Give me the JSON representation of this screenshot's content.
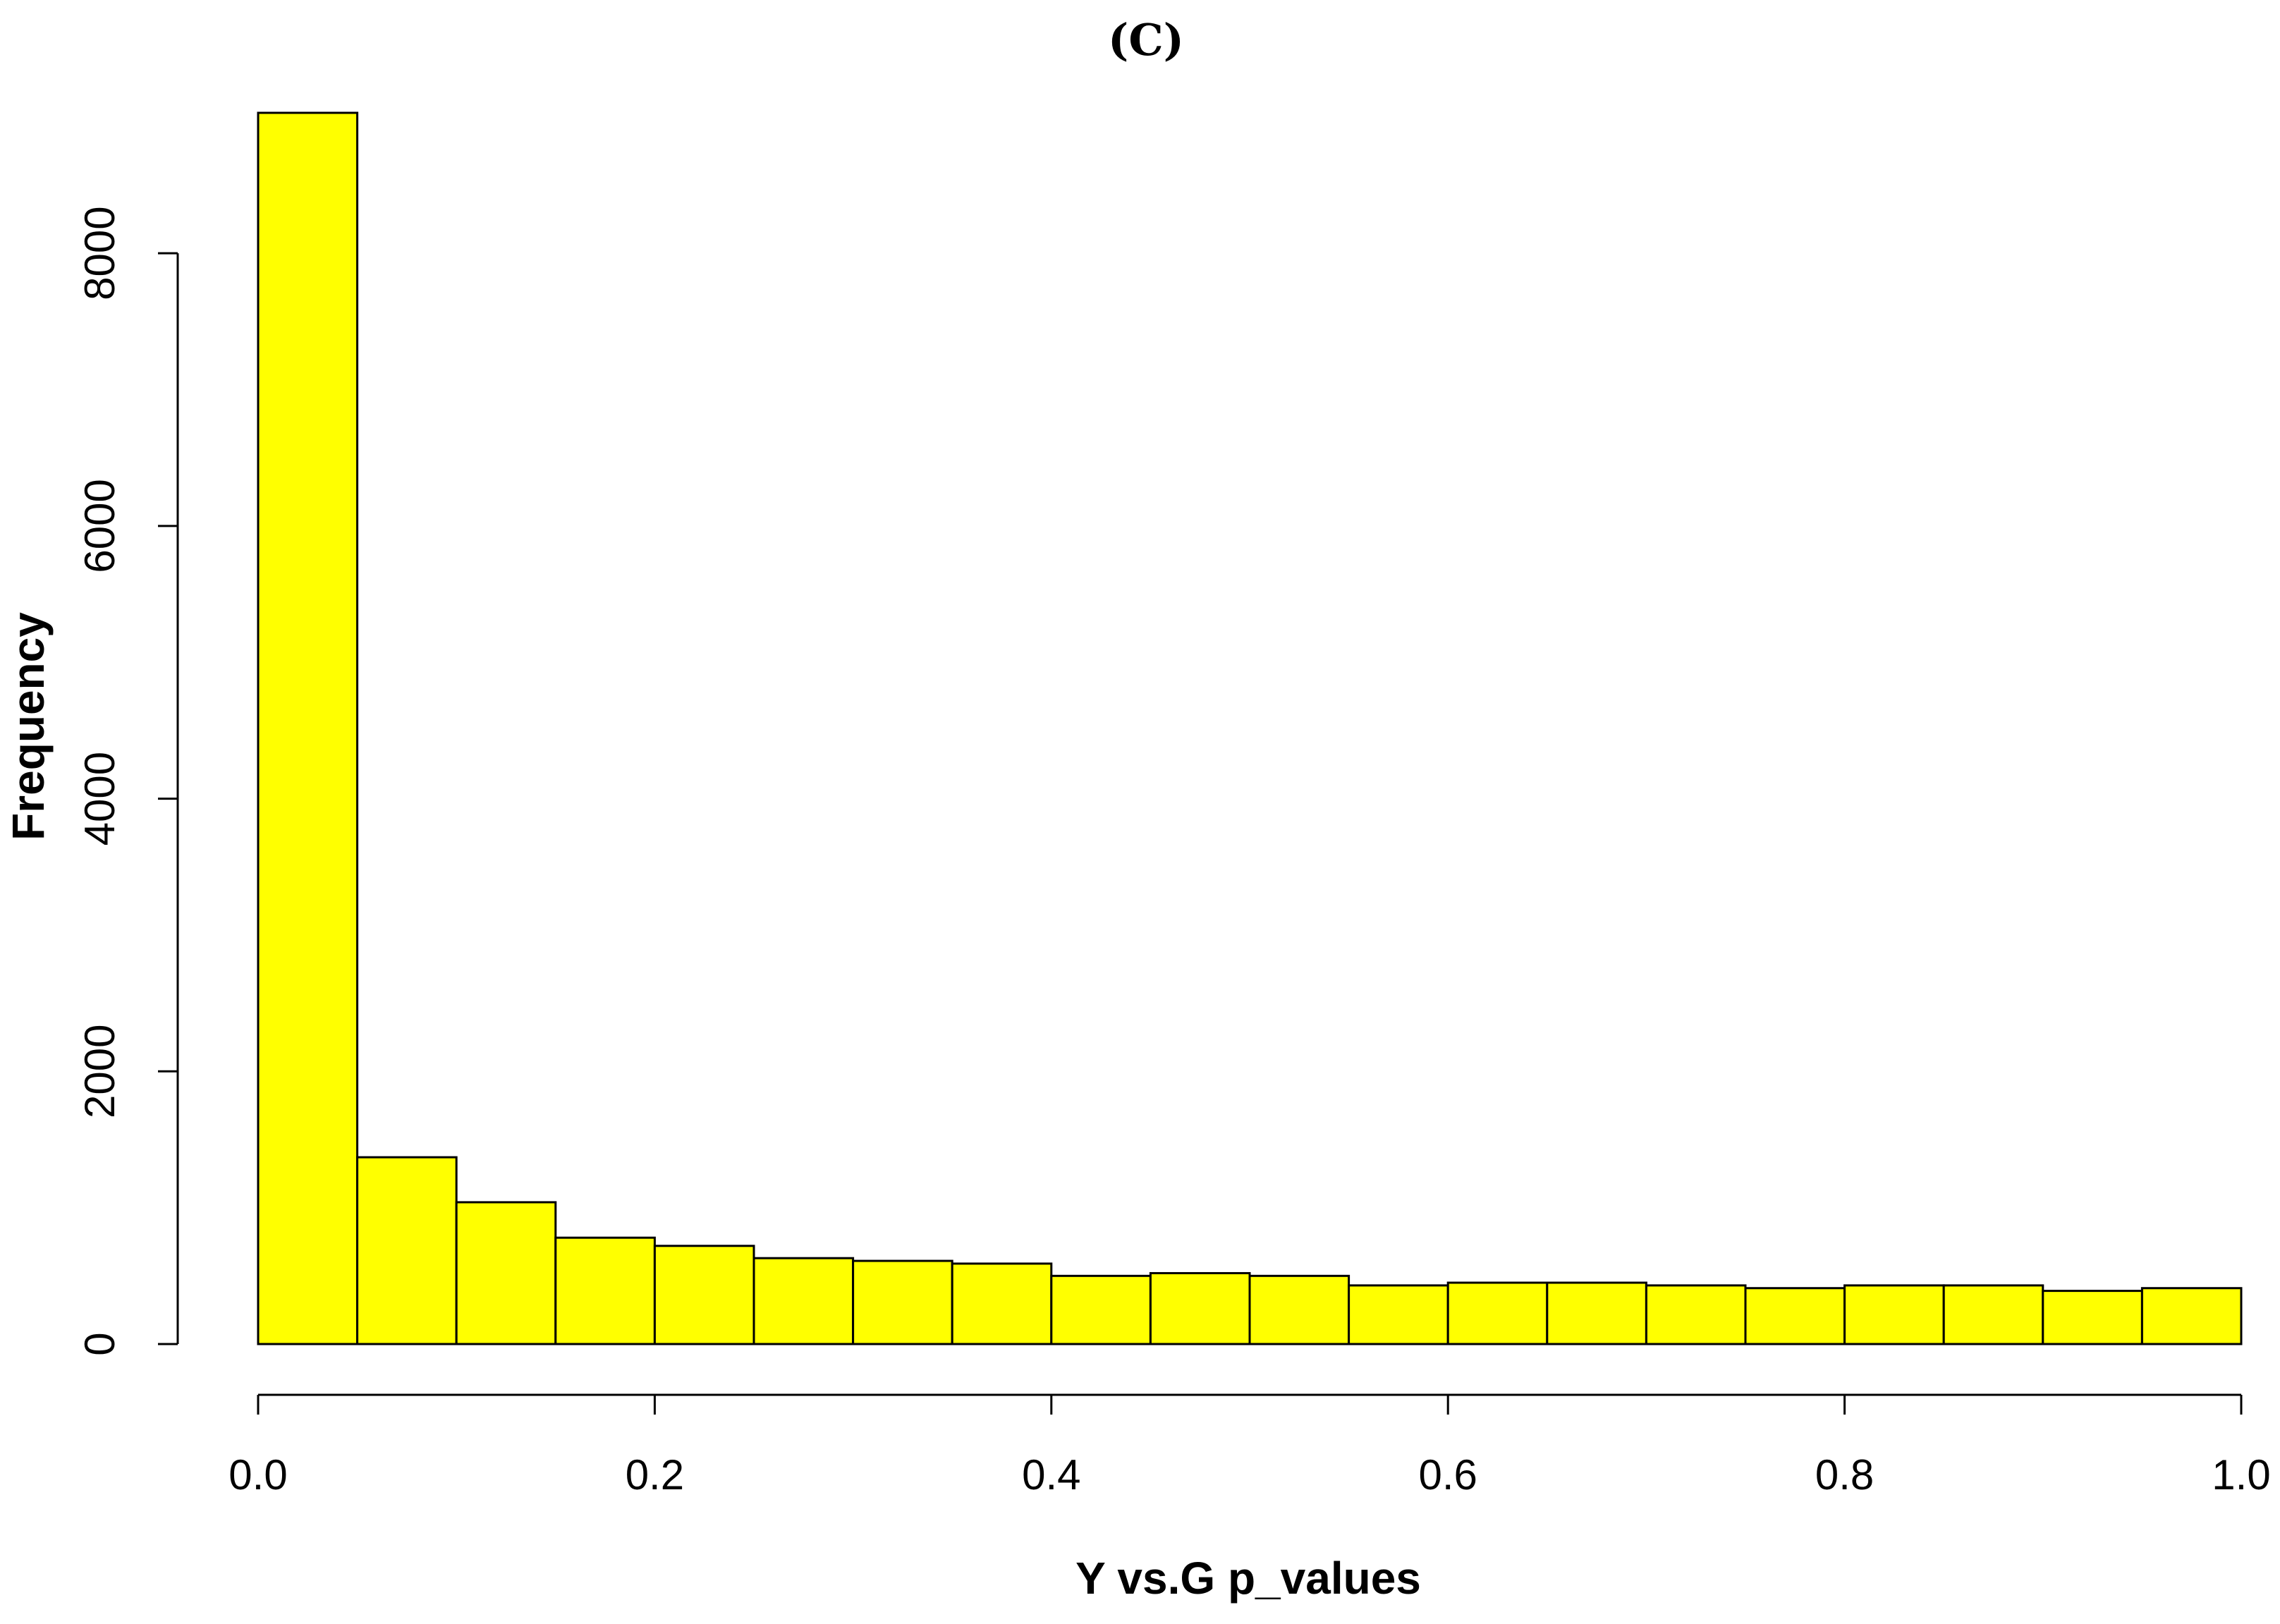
{
  "chart_data": {
    "type": "bar",
    "title": "(C)",
    "xlabel": "Y vs.G p_values",
    "ylabel": "Frequency",
    "bar_color": "#ffff00",
    "bin_edges": [
      0.0,
      0.05,
      0.1,
      0.15,
      0.2,
      0.25,
      0.3,
      0.35,
      0.4,
      0.45,
      0.5,
      0.55,
      0.6,
      0.65,
      0.7,
      0.75,
      0.8,
      0.85,
      0.9,
      0.95,
      1.0
    ],
    "values": [
      9030,
      1370,
      1040,
      780,
      720,
      630,
      610,
      590,
      500,
      520,
      500,
      430,
      450,
      450,
      430,
      410,
      430,
      430,
      390,
      410
    ],
    "xlim": [
      0.0,
      1.0
    ],
    "ylim": [
      0,
      9030
    ],
    "x_ticks": [
      0.0,
      0.2,
      0.4,
      0.6,
      0.8,
      1.0
    ],
    "x_tick_labels": [
      "0.0",
      "0.2",
      "0.4",
      "0.6",
      "0.8",
      "1.0"
    ],
    "y_ticks": [
      0,
      2000,
      4000,
      6000,
      8000
    ],
    "y_tick_labels": [
      "0",
      "2000",
      "4000",
      "6000",
      "8000"
    ],
    "grid": false
  }
}
